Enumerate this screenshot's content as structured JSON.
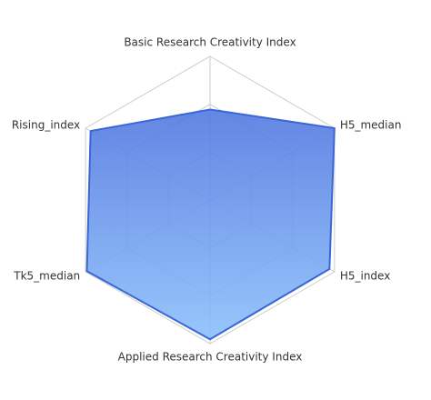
{
  "chart_data": {
    "type": "radar",
    "categories": [
      "Basic Research Creativity Index",
      "H5_median",
      "H5_index",
      "Applied Research Creativity Index",
      "Tk5_median",
      "Rising_index"
    ],
    "values": [
      0.63,
      1.0,
      0.96,
      0.97,
      0.99,
      0.96
    ],
    "ylim": [
      0,
      1
    ],
    "color": "#3a66d6",
    "grid": true
  }
}
